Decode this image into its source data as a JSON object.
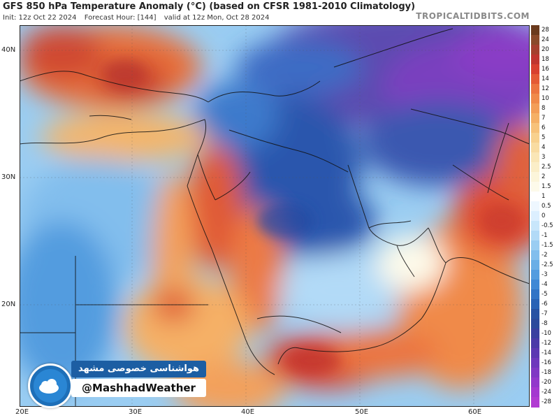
{
  "header": {
    "title": "GFS 850 hPa Temperature Anomaly (°C) (based on CFSR 1981-2010 Climatology)",
    "init": "Init: 12z Oct 22 2024",
    "forecast_hour": "Forecast Hour: [144]",
    "valid": "valid at 12z Mon, Oct 28 2024",
    "brand": "TROPICALTIDBITS.COM"
  },
  "axes": {
    "lat_labels": [
      "40N",
      "30N",
      "20N"
    ],
    "lon_labels": [
      "20E",
      "30E",
      "40E",
      "50E",
      "60E"
    ]
  },
  "colorbar": {
    "labels": [
      "28",
      "24",
      "20",
      "18",
      "16",
      "14",
      "12",
      "10",
      "8",
      "7",
      "6",
      "5",
      "4",
      "3",
      "2.5",
      "2",
      "1.5",
      "1",
      "0.5",
      "0",
      "-0.5",
      "-1",
      "-1.5",
      "-2",
      "-2.5",
      "-3",
      "-4",
      "-5",
      "-6",
      "-7",
      "-8",
      "-10",
      "-12",
      "-14",
      "-16",
      "-18",
      "-20",
      "-24",
      "-28"
    ],
    "colors": [
      "#6b3b1e",
      "#8a4a2a",
      "#a5402e",
      "#c0352f",
      "#d8402f",
      "#e45a35",
      "#ec7540",
      "#f08a4a",
      "#f39e58",
      "#f5b066",
      "#f7c27a",
      "#f8d18e",
      "#f9dca2",
      "#fae6b6",
      "#fbeec8",
      "#fcf5da",
      "#fdfaea",
      "#ffffff",
      "#eef7ff",
      "#dcefff",
      "#c8e6fb",
      "#b2daf7",
      "#9acdf2",
      "#82beed",
      "#6aaee6",
      "#539cdf",
      "#3f88d5",
      "#3274c6",
      "#2a62b5",
      "#2852a3",
      "#2c4a9c",
      "#3a40a0",
      "#4a3aa8",
      "#5c38b2",
      "#6e38bc",
      "#8038c4",
      "#9238cb",
      "#a438d0",
      "#b13bd2"
    ]
  },
  "watermark": {
    "persian_text": "هواشناسی خصوصی مشهد",
    "handle": "@MashhadWeather"
  }
}
